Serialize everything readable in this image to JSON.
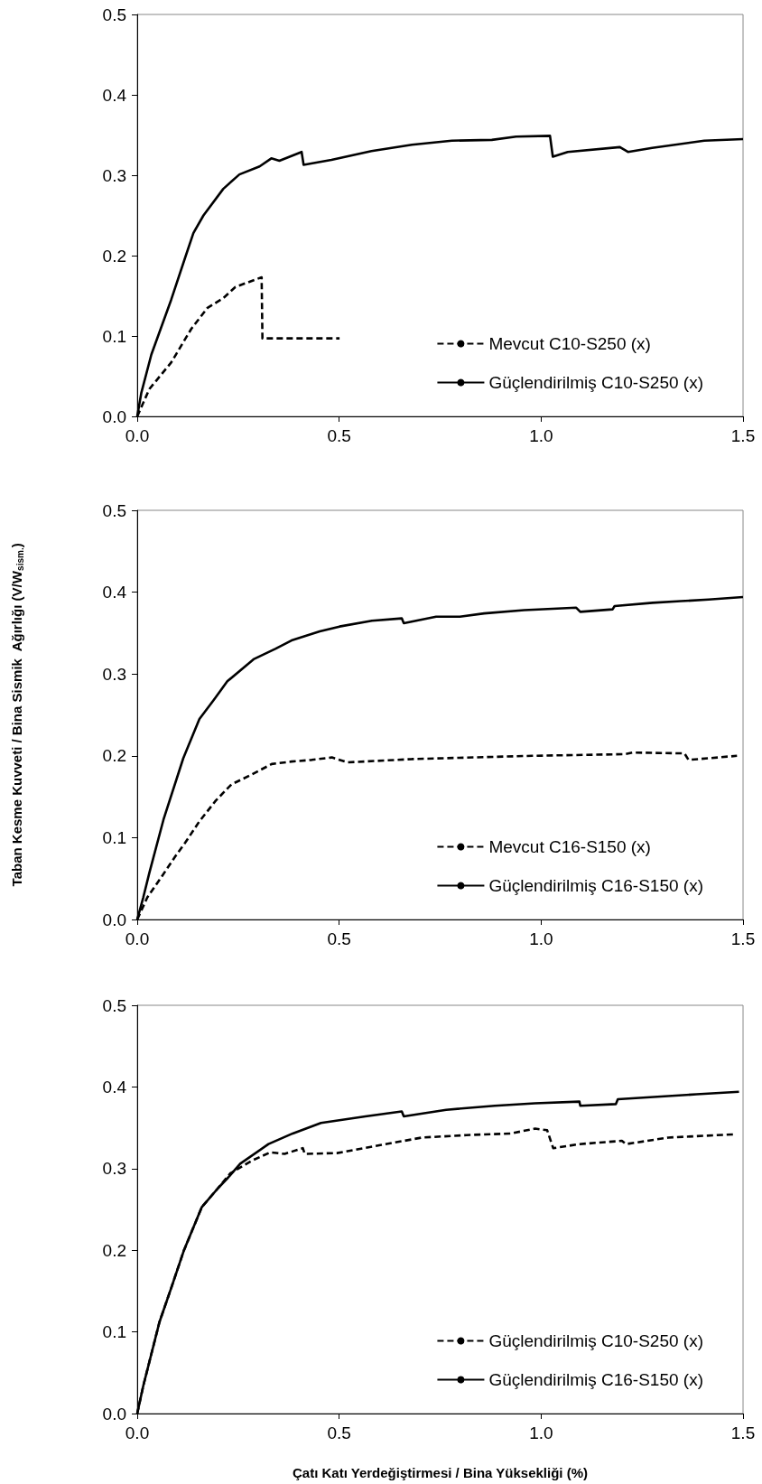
{
  "chart_data": [
    {
      "type": "line",
      "xlim": [
        0,
        1.5
      ],
      "ylim": [
        0,
        0.5
      ],
      "xticks": [
        {
          "value": 0,
          "label": "0.0"
        },
        {
          "value": 0.5,
          "label": "0.5"
        },
        {
          "value": 1,
          "label": "1.0"
        },
        {
          "value": 1.5,
          "label": "1.5"
        }
      ],
      "yticks": [
        {
          "value": 0,
          "label": "0.0"
        },
        {
          "value": 0.1,
          "label": "0.1"
        },
        {
          "value": 0.2,
          "label": "0.2"
        },
        {
          "value": 0.3,
          "label": "0.3"
        },
        {
          "value": 0.4,
          "label": "0.4"
        },
        {
          "value": 0.5,
          "label": "0.5"
        }
      ],
      "grid": false,
      "legend": "bottom right",
      "marker": "none",
      "series": [
        {
          "name": "Mevcut C10-S250 (x)",
          "color": "#000000",
          "line_style": "dashed",
          "x": [
            0,
            0.03,
            0.084,
            0.134,
            0.174,
            0.213,
            0.243,
            0.308,
            0.31,
            0.501
          ],
          "values": [
            0,
            0.034,
            0.067,
            0.109,
            0.135,
            0.147,
            0.161,
            0.173,
            0.097,
            0.097
          ]
        },
        {
          "name": "Güçlendirilmiş C10-S250 (x)",
          "color": "#000000",
          "line_style": "solid",
          "x": [
            0,
            0.01,
            0.035,
            0.084,
            0.119,
            0.139,
            0.164,
            0.213,
            0.253,
            0.303,
            0.332,
            0.352,
            0.407,
            0.412,
            0.481,
            0.58,
            0.68,
            0.779,
            0.878,
            0.938,
            1.022,
            1.029,
            1.066,
            1.195,
            1.215,
            1.275,
            1.404,
            1.5
          ],
          "values": [
            0,
            0.029,
            0.077,
            0.145,
            0.198,
            0.228,
            0.25,
            0.283,
            0.301,
            0.311,
            0.321,
            0.318,
            0.329,
            0.313,
            0.319,
            0.33,
            0.338,
            0.343,
            0.344,
            0.348,
            0.349,
            0.323,
            0.329,
            0.335,
            0.329,
            0.334,
            0.343,
            0.345
          ]
        }
      ]
    },
    {
      "type": "line",
      "ylabel": "Taban Kesme Kuvveti / Bina Sismik  Ağırlığı (V/W$_{sism.}$)",
      "xlim": [
        0,
        1.5
      ],
      "ylim": [
        0,
        0.5
      ],
      "xticks": [
        {
          "value": 0,
          "label": "0.0"
        },
        {
          "value": 0.5,
          "label": "0.5"
        },
        {
          "value": 1,
          "label": "1.0"
        },
        {
          "value": 1.5,
          "label": "1.5"
        }
      ],
      "yticks": [
        {
          "value": 0,
          "label": "0.0"
        },
        {
          "value": 0.1,
          "label": "0.1"
        },
        {
          "value": 0.2,
          "label": "0.2"
        },
        {
          "value": 0.3,
          "label": "0.3"
        },
        {
          "value": 0.4,
          "label": "0.4"
        },
        {
          "value": 0.5,
          "label": "0.5"
        }
      ],
      "grid": false,
      "legend": "bottom right",
      "marker": "none",
      "series": [
        {
          "name": "Mevcut C16-S150 (x)",
          "color": "#000000",
          "line_style": "dashed",
          "x": [
            0,
            0.025,
            0.06,
            0.094,
            0.119,
            0.154,
            0.194,
            0.233,
            0.283,
            0.333,
            0.382,
            0.432,
            0.482,
            0.521,
            0.68,
            0.978,
            1.207,
            1.226,
            1.355,
            1.365,
            1.485
          ],
          "values": [
            0,
            0.027,
            0.052,
            0.077,
            0.094,
            0.12,
            0.145,
            0.165,
            0.177,
            0.19,
            0.193,
            0.195,
            0.198,
            0.192,
            0.196,
            0.2,
            0.202,
            0.204,
            0.203,
            0.195,
            0.2
          ]
        },
        {
          "name": "Güçlendirilmiş C16-S150 (x)",
          "color": "#000000",
          "line_style": "solid",
          "x": [
            0,
            0.015,
            0.03,
            0.065,
            0.114,
            0.154,
            0.189,
            0.223,
            0.288,
            0.343,
            0.382,
            0.452,
            0.501,
            0.581,
            0.655,
            0.66,
            0.74,
            0.799,
            0.859,
            0.958,
            1.087,
            1.097,
            1.177,
            1.182,
            1.276,
            1.346,
            1.415,
            1.5
          ],
          "values": [
            0,
            0.027,
            0.057,
            0.122,
            0.197,
            0.245,
            0.268,
            0.291,
            0.318,
            0.331,
            0.341,
            0.352,
            0.358,
            0.365,
            0.368,
            0.362,
            0.37,
            0.37,
            0.374,
            0.378,
            0.381,
            0.376,
            0.379,
            0.383,
            0.387,
            0.389,
            0.391,
            0.394
          ]
        }
      ]
    },
    {
      "type": "line",
      "xlabel": "Çatı Katı Yerdeğiştirmesi / Bina Yüksekliği (%)",
      "xlim": [
        0,
        1.5
      ],
      "ylim": [
        0,
        0.5
      ],
      "xticks": [
        {
          "value": 0,
          "label": "0.0"
        },
        {
          "value": 0.5,
          "label": "0.5"
        },
        {
          "value": 1,
          "label": "1.0"
        },
        {
          "value": 1.5,
          "label": "1.5"
        }
      ],
      "yticks": [
        {
          "value": 0,
          "label": "0.0"
        },
        {
          "value": 0.1,
          "label": "0.1"
        },
        {
          "value": 0.2,
          "label": "0.2"
        },
        {
          "value": 0.3,
          "label": "0.3"
        },
        {
          "value": 0.4,
          "label": "0.4"
        },
        {
          "value": 0.5,
          "label": "0.5"
        }
      ],
      "grid": false,
      "legend": "bottom right",
      "marker": "none",
      "series": [
        {
          "name": "Güçlendirilmiş C10-S250 (x)",
          "color": "#000000",
          "line_style": "dashed",
          "x": [
            0,
            0.015,
            0.055,
            0.085,
            0.115,
            0.16,
            0.2,
            0.23,
            0.285,
            0.33,
            0.365,
            0.41,
            0.415,
            0.495,
            0.605,
            0.705,
            0.815,
            0.925,
            0.985,
            1.015,
            1.03,
            1.095,
            1.2,
            1.21,
            1.315,
            1.48
          ],
          "values": [
            0,
            0.034,
            0.112,
            0.155,
            0.199,
            0.253,
            0.276,
            0.294,
            0.31,
            0.32,
            0.318,
            0.325,
            0.318,
            0.319,
            0.329,
            0.338,
            0.341,
            0.343,
            0.349,
            0.347,
            0.325,
            0.33,
            0.334,
            0.33,
            0.338,
            0.342
          ]
        },
        {
          "name": "Güçlendirilmiş C16-S150 (x)",
          "color": "#000000",
          "line_style": "solid",
          "x": [
            0,
            0.015,
            0.055,
            0.085,
            0.115,
            0.16,
            0.2,
            0.225,
            0.255,
            0.325,
            0.385,
            0.455,
            0.565,
            0.655,
            0.66,
            0.765,
            0.885,
            0.985,
            1.095,
            1.097,
            1.185,
            1.19,
            1.385,
            1.49
          ],
          "values": [
            0,
            0.034,
            0.112,
            0.155,
            0.199,
            0.253,
            0.276,
            0.289,
            0.306,
            0.33,
            0.343,
            0.356,
            0.364,
            0.37,
            0.364,
            0.372,
            0.377,
            0.38,
            0.382,
            0.377,
            0.379,
            0.385,
            0.391,
            0.394
          ]
        }
      ]
    }
  ]
}
